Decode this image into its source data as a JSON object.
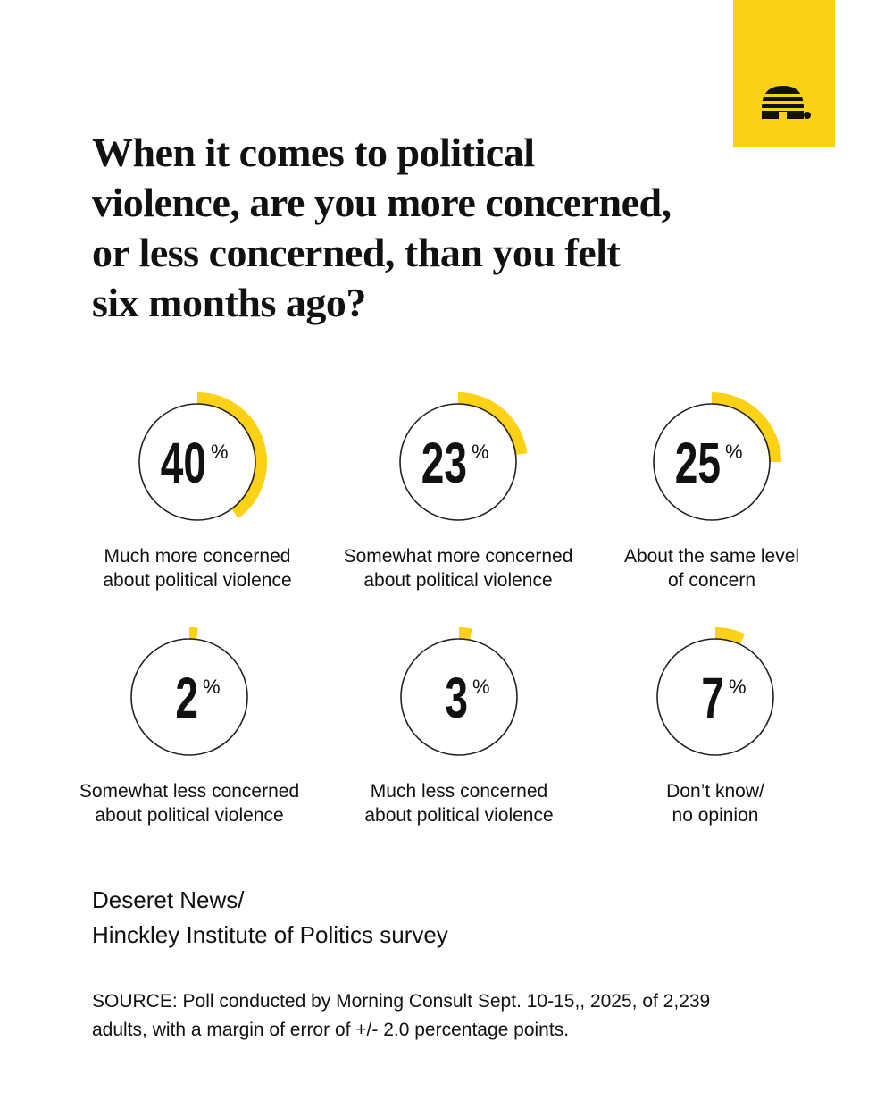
{
  "chart_data": {
    "type": "gauge",
    "title": [
      "When it comes to political",
      "violence, are you more concerned,",
      "or less concerned, than you felt",
      "six months ago?"
    ],
    "categories": [
      [
        "Much more concerned",
        "about political violence"
      ],
      [
        "Somewhat more concerned",
        "about political violence"
      ],
      [
        "About the same level",
        "of concern"
      ],
      [
        "Somewhat less concerned",
        "about political violence"
      ],
      [
        "Much less concerned",
        "about political violence"
      ],
      [
        "Don’t know/",
        "no opinion"
      ]
    ],
    "values": [
      40,
      23,
      25,
      2,
      3,
      7
    ],
    "unit": "%",
    "color": "#fcd116",
    "credit": [
      "Deseret News/",
      "Hinckley Institute of Politics survey"
    ],
    "source": [
      "SOURCE: Poll conducted by Morning Consult Sept. 10-15,, 2025, of 2,239",
      "adults, with a margin of error of +/- 2.0 percentage points."
    ]
  }
}
